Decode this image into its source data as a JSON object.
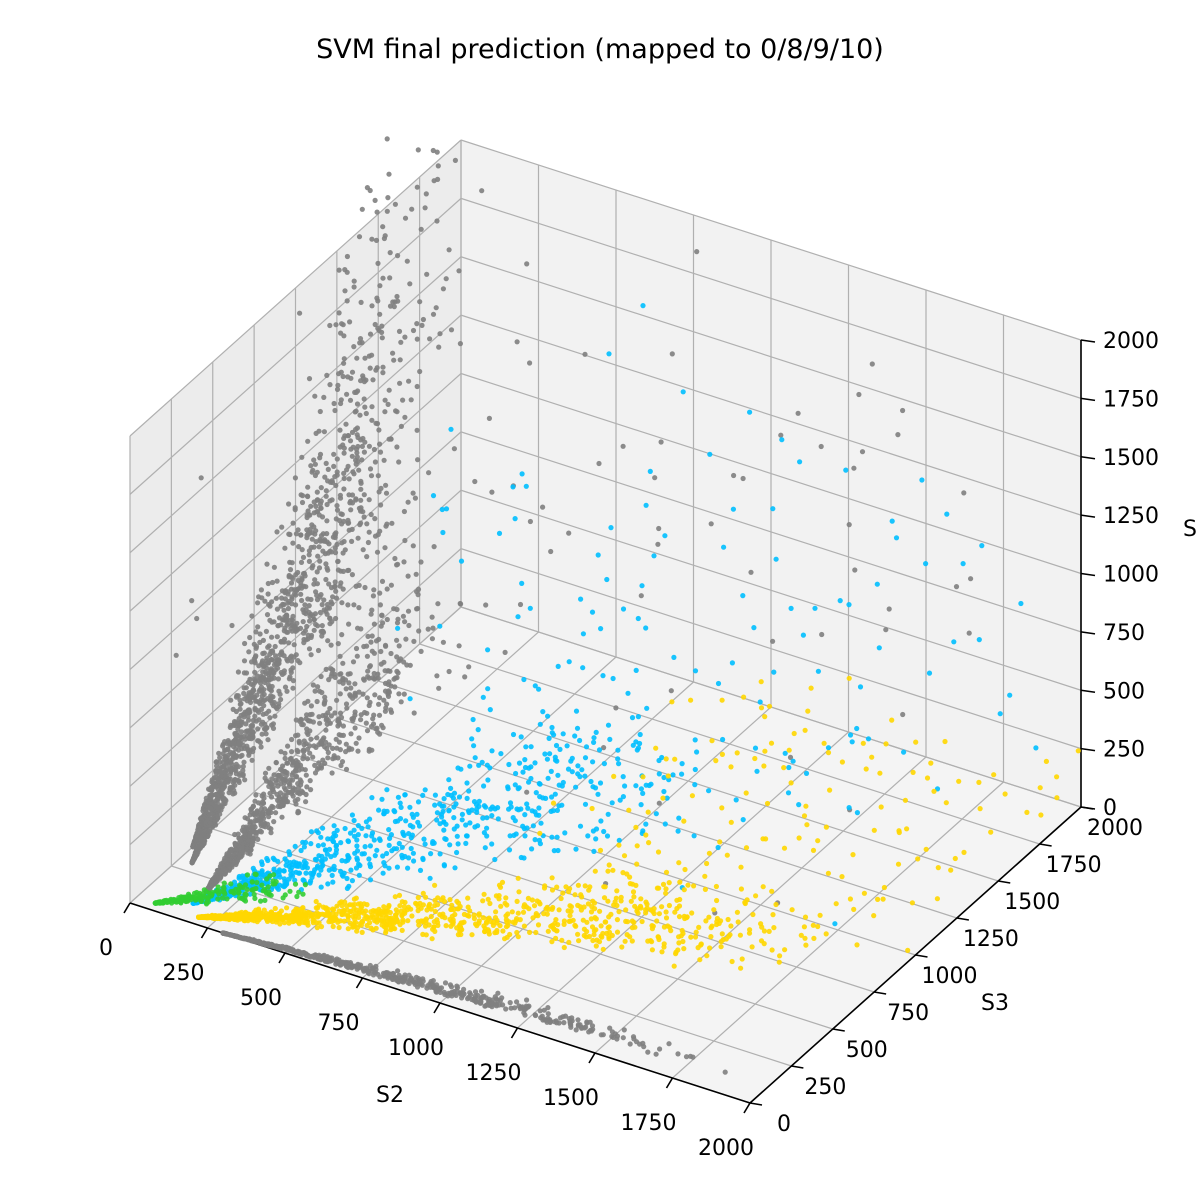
{
  "chart_data": {
    "type": "scatter",
    "projection": "3d",
    "title": "SVM final prediction (mapped to 0/8/9/10)",
    "xlabel": "S2",
    "ylabel": "S3",
    "zlabel": "S",
    "xlim": [
      0,
      2000
    ],
    "ylim": [
      0,
      2000
    ],
    "zlim": [
      0,
      2000
    ],
    "xticks": [
      "0",
      "250",
      "500",
      "750",
      "1000",
      "1250",
      "1500",
      "1750",
      "2000"
    ],
    "yticks": [
      "0",
      "250",
      "500",
      "750",
      "1000",
      "1250",
      "1500",
      "1750",
      "2000"
    ],
    "zticks": [
      "0",
      "250",
      "500",
      "750",
      "1000",
      "1250",
      "1500",
      "1750",
      "2000"
    ],
    "grid": true,
    "series_colors": {
      "0": "#808080",
      "8": "#32cd32",
      "9": "#00bfff",
      "10": "#ffd700"
    },
    "clusters": [
      {
        "cls": "0",
        "x": [
          0,
          40
        ],
        "y": [
          380,
          2000
        ],
        "z": [
          0,
          2400
        ],
        "n": 700,
        "shape": "ray"
      },
      {
        "cls": "0",
        "x": [
          40,
          200
        ],
        "y": [
          300,
          1400
        ],
        "z": [
          0,
          1700
        ],
        "n": 800,
        "shape": "ray"
      },
      {
        "cls": "0",
        "x": [
          150,
          600
        ],
        "y": [
          180,
          900
        ],
        "z": [
          0,
          1300
        ],
        "n": 900,
        "shape": "ray"
      },
      {
        "cls": "0",
        "x": [
          300,
          1900
        ],
        "y": [
          0,
          60
        ],
        "z": [
          0,
          100
        ],
        "n": 650,
        "shape": "ray"
      },
      {
        "cls": "0",
        "x": [
          0,
          2000
        ],
        "y": [
          0,
          2000
        ],
        "z": [
          600,
          2000
        ],
        "n": 90,
        "shape": "sparse"
      },
      {
        "cls": "9",
        "x": [
          150,
          1600
        ],
        "y": [
          100,
          900
        ],
        "z": [
          0,
          1000
        ],
        "n": 800,
        "shape": "ray"
      },
      {
        "cls": "9",
        "x": [
          400,
          2000
        ],
        "y": [
          500,
          2000
        ],
        "z": [
          300,
          1600
        ],
        "n": 110,
        "shape": "sparse"
      },
      {
        "cls": "8",
        "x": [
          60,
          500
        ],
        "y": [
          40,
          260
        ],
        "z": [
          0,
          150
        ],
        "n": 200,
        "shape": "ray"
      },
      {
        "cls": "10",
        "x": [
          200,
          1900
        ],
        "y": [
          40,
          900
        ],
        "z": [
          0,
          200
        ],
        "n": 1100,
        "shape": "ray"
      },
      {
        "cls": "10",
        "x": [
          900,
          2000
        ],
        "y": [
          700,
          2000
        ],
        "z": [
          0,
          300
        ],
        "n": 140,
        "shape": "sparse"
      }
    ]
  }
}
